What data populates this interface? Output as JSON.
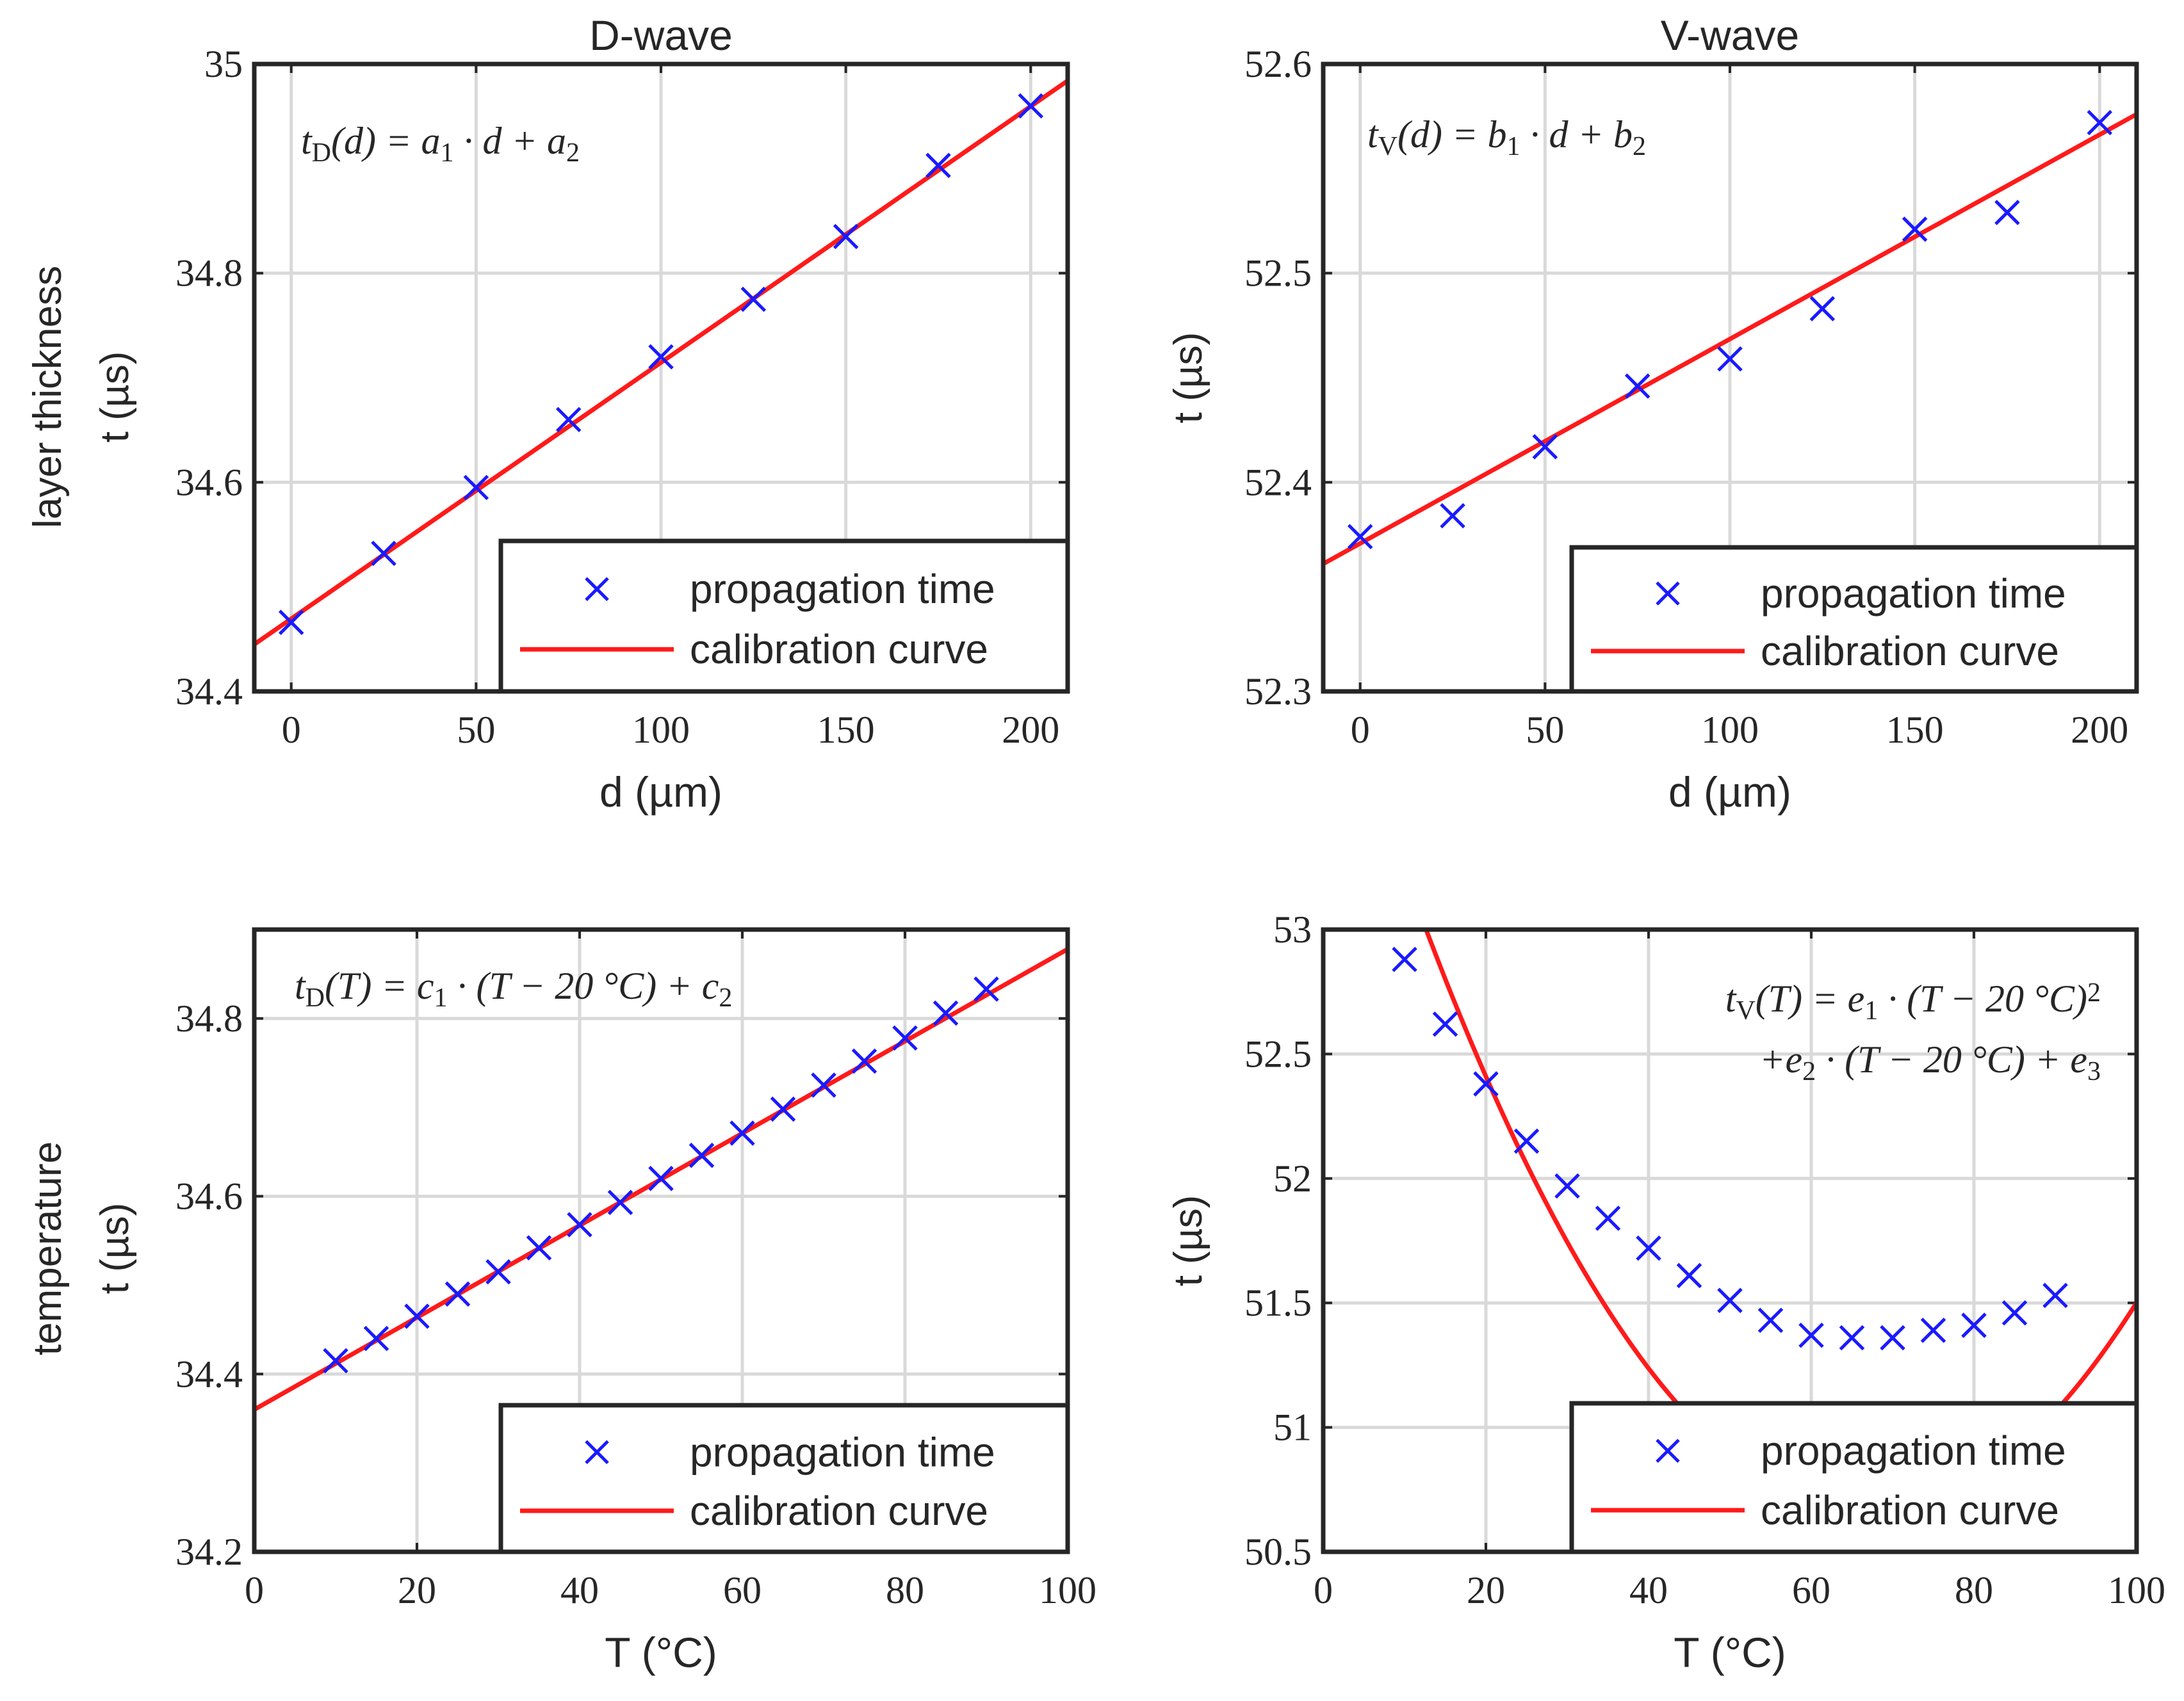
{
  "figure": {
    "row_labels": [
      {
        "main": "layer thickness",
        "sub": "t (µs)"
      },
      {
        "main": "temperature",
        "sub": "t (µs)"
      }
    ]
  },
  "colors": {
    "marker": "#1a1aff",
    "curve": "#ff1a1a",
    "grid": "#d9d9d9",
    "axes": "#262626"
  },
  "chart_data": [
    {
      "type": "scatter",
      "title": "D-wave",
      "xlabel": "d (µm)",
      "ylabel": "t (µs)",
      "xlim": [
        -10,
        210
      ],
      "ylim": [
        34.4,
        35
      ],
      "xticks": [
        0,
        50,
        100,
        150,
        200
      ],
      "yticks": [
        34.4,
        34.6,
        34.8,
        35
      ],
      "ytick_labels": [
        "34.4",
        "34.6",
        "34.8",
        "35"
      ],
      "grid": true,
      "legend_position": "bottom-right",
      "equation_lines": [
        {
          "base": "t",
          "sub": "D",
          "rest": "(d) = a",
          "sub2": "1",
          "rest2": " · d + a",
          "sub3": "2"
        }
      ],
      "series": [
        {
          "name": "propagation time",
          "kind": "marker",
          "x": [
            0,
            25,
            50,
            75,
            100,
            125,
            150,
            175,
            200
          ],
          "y": [
            34.466,
            34.532,
            34.595,
            34.66,
            34.72,
            34.775,
            34.835,
            34.903,
            34.96
          ]
        },
        {
          "name": "calibration curve",
          "kind": "line",
          "x": [
            -10,
            210
          ],
          "y": [
            34.445,
            34.984
          ]
        }
      ]
    },
    {
      "type": "scatter",
      "title": "V-wave",
      "xlabel": "d (µm)",
      "ylabel": "t (µs)",
      "xlim": [
        -10,
        210
      ],
      "ylim": [
        52.3,
        52.6
      ],
      "xticks": [
        0,
        50,
        100,
        150,
        200
      ],
      "yticks": [
        52.3,
        52.4,
        52.5,
        52.6
      ],
      "ytick_labels": [
        "52.3",
        "52.4",
        "52.5",
        "52.6"
      ],
      "grid": true,
      "legend_position": "bottom-right",
      "equation_lines": [
        {
          "base": "t",
          "sub": "V",
          "rest": "(d) = b",
          "sub2": "1",
          "rest2": " · d + b",
          "sub3": "2"
        }
      ],
      "series": [
        {
          "name": "propagation time",
          "kind": "marker",
          "x": [
            0,
            25,
            50,
            75,
            100,
            125,
            150,
            175,
            200
          ],
          "y": [
            52.374,
            52.384,
            52.417,
            52.446,
            52.459,
            52.483,
            52.521,
            52.529,
            52.572
          ]
        },
        {
          "name": "calibration curve",
          "kind": "line",
          "x": [
            -10,
            210
          ],
          "y": [
            52.361,
            52.576
          ]
        }
      ]
    },
    {
      "type": "scatter",
      "title": "",
      "xlabel": "T (°C)",
      "ylabel": "t (µs)",
      "xlim": [
        0,
        100
      ],
      "ylim": [
        34.2,
        34.9
      ],
      "xticks": [
        0,
        20,
        40,
        60,
        80,
        100
      ],
      "yticks": [
        34.2,
        34.4,
        34.6,
        34.8
      ],
      "ytick_labels": [
        "34.2",
        "34.4",
        "34.6",
        "34.8"
      ],
      "grid": true,
      "legend_position": "bottom-right",
      "equation_lines": [
        {
          "base": "t",
          "sub": "D",
          "rest": "(T) = c",
          "sub2": "1",
          "rest2": " · (T − 20 °C) + c",
          "sub3": "2"
        }
      ],
      "series": [
        {
          "name": "propagation time",
          "kind": "marker",
          "x": [
            10,
            15,
            20,
            25,
            30,
            35,
            40,
            45,
            50,
            55,
            60,
            65,
            70,
            75,
            80,
            85,
            90
          ],
          "y": [
            34.415,
            34.44,
            34.465,
            34.49,
            34.515,
            34.542,
            34.568,
            34.593,
            34.62,
            34.646,
            34.671,
            34.698,
            34.725,
            34.752,
            34.778,
            34.806,
            34.833
          ]
        },
        {
          "name": "calibration curve",
          "kind": "line",
          "x": [
            0,
            100
          ],
          "y": [
            34.36,
            34.878
          ]
        }
      ]
    },
    {
      "type": "scatter",
      "title": "",
      "xlabel": "T (°C)",
      "ylabel": "t (µs)",
      "xlim": [
        0,
        100
      ],
      "ylim": [
        50.5,
        53
      ],
      "xticks": [
        0,
        20,
        40,
        60,
        80,
        100
      ],
      "yticks": [
        50.5,
        51,
        51.5,
        52,
        52.5,
        53
      ],
      "ytick_labels": [
        "50.5",
        "51",
        "51.5",
        "52",
        "52.5",
        "53"
      ],
      "grid": true,
      "legend_position": "bottom-right",
      "equation_lines": [
        {
          "base": "t",
          "sub": "V",
          "rest": "(T) = e",
          "sub2": "1",
          "rest2": " · (T − 20 °C)",
          "sup": "2"
        },
        {
          "base": "+e",
          "sub": "2",
          "rest": " · (T − 20 °C) + e",
          "sub2": "3",
          "rest2": ""
        }
      ],
      "series": [
        {
          "name": "propagation time",
          "kind": "marker",
          "x": [
            10,
            15,
            20,
            25,
            30,
            35,
            40,
            45,
            50,
            55,
            60,
            65,
            70,
            75,
            80,
            85,
            90
          ],
          "y": [
            52.88,
            52.62,
            52.38,
            52.15,
            51.97,
            51.84,
            51.72,
            51.61,
            51.51,
            51.43,
            51.37,
            51.36,
            51.36,
            51.39,
            51.41,
            51.46,
            51.53
          ]
        },
        {
          "name": "calibration curve",
          "kind": "quadratic",
          "coefficients": {
            "e1": 0.000788,
            "e2": -0.0744,
            "e3": 52.41
          },
          "x_offset": 20,
          "x": [
            7.5,
            100
          ]
        }
      ]
    }
  ]
}
